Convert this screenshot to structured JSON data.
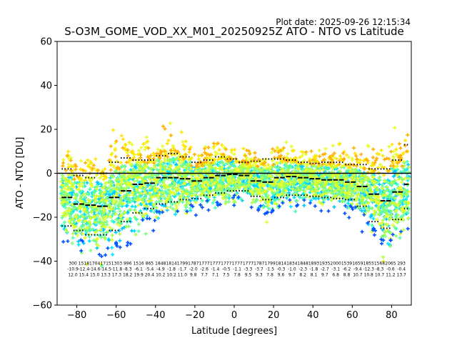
{
  "header": {
    "plot_date": "Plot date: 2025-09-26 12:15:34",
    "title": "S-O3M_GOME_VOD_XX_M01_20250925Z ATO - NTO vs Latitude"
  },
  "chart_data": {
    "type": "scatter",
    "title": "S-O3M_GOME_VOD_XX_M01_20250925Z ATO - NTO vs Latitude",
    "xlabel": "Latitude [degrees]",
    "ylabel": "ATO - NTO [DU]",
    "xlim": [
      -90,
      90
    ],
    "ylim": [
      -60,
      60
    ],
    "xticks": [
      -80,
      -60,
      -40,
      -20,
      0,
      20,
      40,
      60,
      80
    ],
    "xtick_labels": [
      "−80",
      "−60",
      "−40",
      "−20",
      "0",
      "20",
      "40",
      "60",
      "80"
    ],
    "yticks": [
      -60,
      -40,
      -20,
      0,
      20,
      40,
      60
    ],
    "ytick_labels": [
      "−60",
      "−40",
      "−20",
      "0",
      "20",
      "40",
      "60"
    ],
    "grid": false,
    "zero_line": 0,
    "colors": {
      "palette": [
        "#00e5ff",
        "#00c8ff",
        "#4dffb0",
        "#7dff7a",
        "#b0ff4a",
        "#e6ff2a",
        "#ffe600",
        "#ffb000",
        "#0050ff"
      ],
      "mean_marker": "#000000"
    },
    "point_marker": "plus",
    "bin_width": 3,
    "mean_bins": {
      "lat": [
        -86.5,
        -83.5,
        -80.5,
        -77.5,
        -74.5,
        -71.5,
        -68.5,
        -65.5,
        -62.5,
        -59.5,
        -56.5,
        -53.5,
        -50.5,
        -47.5,
        -44.5,
        -41.5,
        -38.5,
        -35.5,
        -32.5,
        -29.5,
        -26.5,
        -23.5,
        -20.5,
        -17.5,
        -14.5,
        -11.5,
        -8.5,
        -5.5,
        -2.5,
        0.5,
        3.5,
        6.5,
        9.5,
        12.5,
        15.5,
        18.5,
        21.5,
        24.5,
        27.5,
        30.5,
        33.5,
        36.5,
        39.5,
        42.5,
        45.5,
        48.5,
        51.5,
        54.5,
        57.5,
        60.5,
        63.5,
        66.5,
        69.5,
        72.5,
        75.5,
        78.5,
        81.5,
        84.5,
        87.5
      ],
      "mean": [
        -11,
        -11,
        -14,
        -14,
        -14.5,
        -14.5,
        -15,
        -15,
        -11,
        -11,
        -8,
        -8,
        -5,
        -5,
        -4.5,
        -4.5,
        -2,
        -2,
        -2,
        -2,
        -2.5,
        -2.5,
        -3.5,
        -3.5,
        -2,
        -2,
        -1,
        -1,
        -0.5,
        -0.5,
        -1,
        -1,
        -3.5,
        -3.5,
        -4,
        -4,
        -2,
        -2,
        -1.5,
        -1.5,
        -2,
        -2,
        -2.5,
        -2.5,
        -3,
        -3,
        -3,
        -3,
        -4,
        -4,
        -6,
        -6,
        -9.5,
        -9.5,
        -12.5,
        -12.5,
        -8.5,
        -8.5,
        -5
      ],
      "upper": [
        2,
        2,
        -1,
        -1,
        -2,
        -2,
        0,
        0,
        5,
        5,
        7,
        7,
        6,
        6,
        6,
        6,
        8,
        8,
        9,
        9,
        7.5,
        7.5,
        5,
        5,
        6,
        6,
        7.5,
        7.5,
        6.5,
        6.5,
        5,
        5,
        5.5,
        5.5,
        6.5,
        6.5,
        6.5,
        6.5,
        6,
        6,
        5,
        5,
        4.5,
        4.5,
        5,
        5,
        5,
        5,
        4,
        4,
        4,
        4,
        2,
        2,
        2,
        2,
        6,
        6,
        13
      ],
      "lower": [
        -24,
        -24,
        -26,
        -26,
        -28,
        -28,
        -28,
        -28,
        -26,
        -26,
        -22,
        -22,
        -18,
        -18,
        -16,
        -16,
        -14,
        -14,
        -13,
        -13,
        -12,
        -12,
        -11.5,
        -11.5,
        -10,
        -10,
        -9,
        -9,
        -8,
        -8,
        -8,
        -8,
        -10.5,
        -10.5,
        -12,
        -12,
        -11,
        -11,
        -10,
        -10,
        -10,
        -10,
        -10.5,
        -10.5,
        -11,
        -11,
        -11.5,
        -11.5,
        -12,
        -12,
        -15,
        -15,
        -22,
        -22,
        -25,
        -25,
        -21,
        -21,
        -16
      ]
    },
    "stats_rows": {
      "count": [
        "300",
        "1518",
        "1704",
        "1715",
        "1303",
        "996",
        "1516",
        "865",
        "1848",
        "1814",
        "1799",
        "1787",
        "1777",
        "1777",
        "1777",
        "1777",
        "1777",
        "1787",
        "1799",
        "1814",
        "1834",
        "1848",
        "1893",
        "1935",
        "2000",
        "1539",
        "1659",
        "1855",
        "1568",
        "2065",
        "293"
      ],
      "mean": [
        "-10.9",
        "-12.4",
        "-14.6",
        "-14.5",
        "-11.8",
        "-8.3",
        "-6.1",
        "-5.4",
        "-4.9",
        "-1.8",
        "-1.7",
        "-2.0",
        "-2.6",
        "-1.4",
        "-0.5",
        "-1.1",
        "-3.3",
        "-3.7",
        "-1.5",
        "-0.3",
        "-1.0",
        "-2.3",
        "-1.8",
        "-2.7",
        "-3.1",
        "-6.2",
        "-9.4",
        "-12.3",
        "-8.3",
        "-0.6",
        "-0.4"
      ],
      "std": [
        "12.0",
        "15.4",
        "15.0",
        "13.3",
        "17.3",
        "18.2",
        "19.9",
        "20.4",
        "10.2",
        "10.2",
        "11.0",
        "9.8",
        "7.7",
        "7.1",
        "7.5",
        "7.8",
        "9.5",
        "9.3",
        "7.8",
        "9.6",
        "9.7",
        "8.2",
        "8.1",
        "9.7",
        "6.8",
        "8.8",
        "10.7",
        "10.8",
        "10.7",
        "11.2",
        "13.7"
      ]
    }
  }
}
